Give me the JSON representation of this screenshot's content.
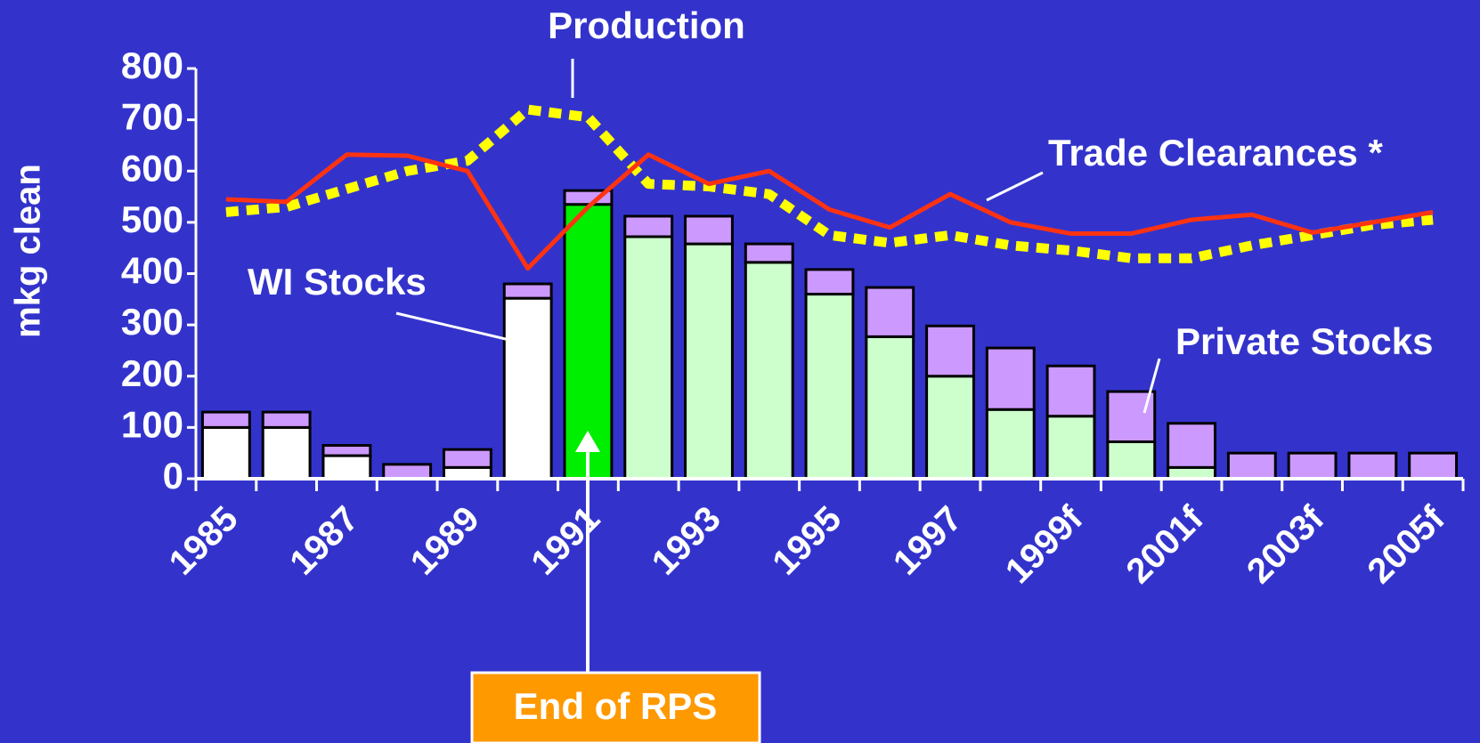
{
  "chart_data": {
    "type": "bar",
    "stacked": true,
    "y_label": "mkg clean",
    "categories": [
      "1985",
      null,
      "1987",
      null,
      "1989",
      null,
      "1991",
      null,
      "1993",
      null,
      "1995",
      null,
      "1997",
      null,
      "1999f",
      null,
      "2001f",
      null,
      "2003f",
      null,
      "2005f"
    ],
    "series": [
      {
        "name": "WI Stocks",
        "type": "bar",
        "colors": [
          "#ffffff",
          "#ffffff",
          "#ffffff",
          "#ffffff",
          "#ffffff",
          "#ffffff",
          "#00ee00",
          "#ccffcc",
          "#ccffcc",
          "#ccffcc",
          "#ccffcc",
          "#ccffcc",
          "#ccffcc",
          "#ccffcc",
          "#ccffcc",
          "#ccffcc",
          "#ccffcc",
          "#ccffcc",
          "#ccffcc",
          "#ccffcc",
          "#ccffcc"
        ],
        "values": [
          100,
          100,
          45,
          0,
          22,
          352,
          535,
          472,
          458,
          422,
          360,
          277,
          200,
          135,
          122,
          72,
          22,
          0,
          0,
          0,
          0
        ]
      },
      {
        "name": "Private Stocks",
        "type": "bar",
        "color": "#cc99ff",
        "values": [
          30,
          30,
          20,
          28,
          35,
          28,
          27,
          40,
          54,
          36,
          48,
          96,
          98,
          120,
          98,
          98,
          86,
          50,
          50,
          50,
          50
        ]
      },
      {
        "name": "Production",
        "type": "line",
        "color": "#ffff00",
        "dashed": true,
        "values": [
          520,
          530,
          565,
          600,
          620,
          720,
          705,
          575,
          570,
          555,
          475,
          460,
          475,
          455,
          445,
          430,
          430,
          455,
          475,
          495,
          505
        ]
      },
      {
        "name": "Trade Clearances *",
        "type": "line",
        "color": "#ff3311",
        "dashed": false,
        "values": [
          545,
          540,
          632,
          630,
          600,
          410,
          530,
          632,
          575,
          600,
          525,
          490,
          555,
          500,
          478,
          478,
          505,
          515,
          480,
          500,
          520
        ]
      }
    ],
    "ylim": [
      0,
      800
    ],
    "yticks": [
      0,
      100,
      200,
      300,
      400,
      500,
      600,
      700,
      800
    ],
    "annotations": [
      "End of RPS"
    ],
    "annotation_color": "#ff9900"
  }
}
